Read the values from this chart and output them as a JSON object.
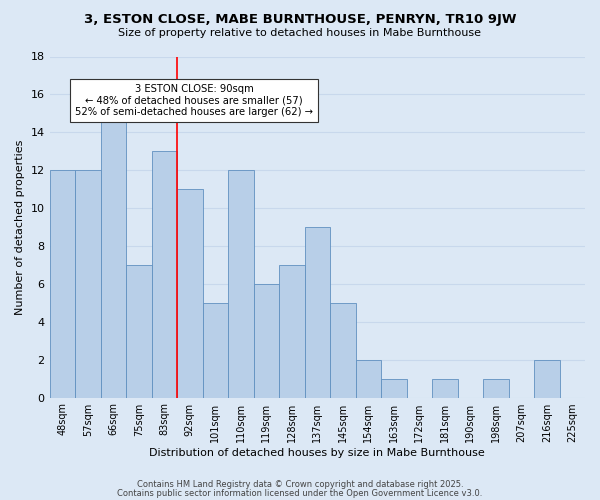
{
  "title": "3, ESTON CLOSE, MABE BURNTHOUSE, PENRYN, TR10 9JW",
  "subtitle": "Size of property relative to detached houses in Mabe Burnthouse",
  "xlabel": "Distribution of detached houses by size in Mabe Burnthouse",
  "ylabel": "Number of detached properties",
  "bin_labels": [
    "48sqm",
    "57sqm",
    "66sqm",
    "75sqm",
    "83sqm",
    "92sqm",
    "101sqm",
    "110sqm",
    "119sqm",
    "128sqm",
    "137sqm",
    "145sqm",
    "154sqm",
    "163sqm",
    "172sqm",
    "181sqm",
    "190sqm",
    "198sqm",
    "207sqm",
    "216sqm",
    "225sqm"
  ],
  "bar_heights": [
    12,
    12,
    15,
    7,
    13,
    11,
    5,
    12,
    6,
    7,
    9,
    5,
    2,
    1,
    0,
    1,
    0,
    1,
    0,
    2,
    0
  ],
  "bar_color": "#b8cfe8",
  "bar_edge_color": "#6090c0",
  "grid_color": "#c8d8ec",
  "background_color": "#dce8f5",
  "vline_x": 4.5,
  "vline_color": "red",
  "annotation_text": "3 ESTON CLOSE: 90sqm\n← 48% of detached houses are smaller (57)\n52% of semi-detached houses are larger (62) →",
  "annotation_box_color": "white",
  "annotation_box_edge": "#333333",
  "ylim": [
    0,
    18
  ],
  "yticks": [
    0,
    2,
    4,
    6,
    8,
    10,
    12,
    14,
    16,
    18
  ],
  "footer1": "Contains HM Land Registry data © Crown copyright and database right 2025.",
  "footer2": "Contains public sector information licensed under the Open Government Licence v3.0."
}
